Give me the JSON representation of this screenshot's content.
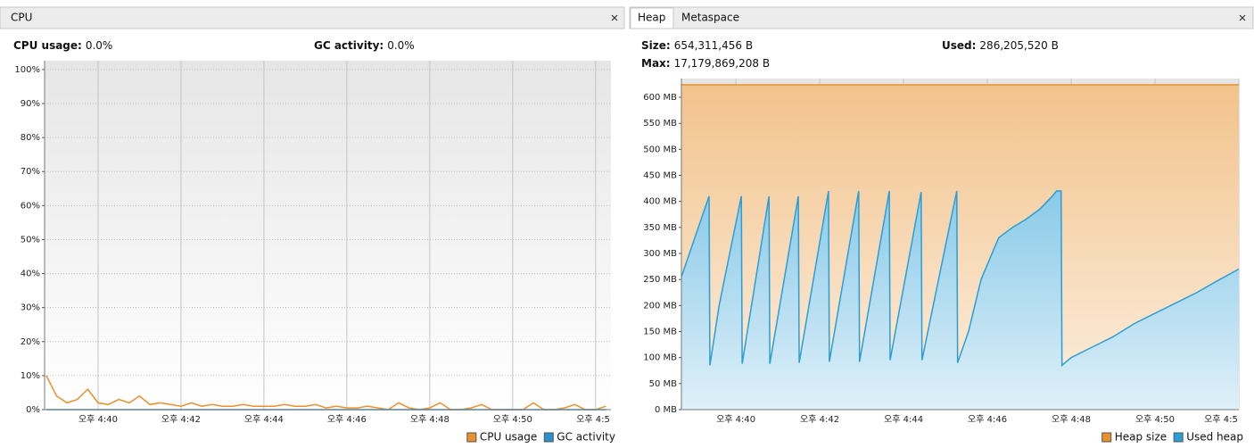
{
  "tabs": {
    "left": [
      "CPU"
    ],
    "right": [
      "Heap",
      "Metaspace"
    ]
  },
  "cpu_stats": [
    {
      "label": "CPU usage:",
      "value": "0.0%"
    },
    {
      "label": "GC activity:",
      "value": "0.0%"
    }
  ],
  "heap_stats": [
    {
      "label": "Size:",
      "value": "654,311,456 B"
    },
    {
      "label": "Used:",
      "value": "286,205,520 B"
    },
    {
      "label": "Max:",
      "value": "17,179,869,208 B"
    }
  ],
  "chart_data": [
    {
      "type": "line",
      "legend": "bottom-right",
      "grid": true,
      "x": [
        38.75,
        39,
        39.25,
        39.5,
        39.75,
        40,
        40.25,
        40.5,
        40.75,
        41,
        41.25,
        41.5,
        41.75,
        42,
        42.25,
        42.5,
        42.75,
        43,
        43.25,
        43.5,
        43.75,
        44,
        44.25,
        44.5,
        44.75,
        45,
        45.25,
        45.5,
        45.75,
        46,
        46.25,
        46.5,
        46.75,
        47,
        47.25,
        47.5,
        47.75,
        48,
        48.25,
        48.5,
        48.75,
        49,
        49.25,
        49.5,
        49.75,
        50,
        50.25,
        50.5,
        50.75,
        51,
        51.25,
        51.5,
        51.75,
        52,
        52.25
      ],
      "series": [
        {
          "name": "CPU usage",
          "color": "#e8912d",
          "values": [
            10,
            4,
            2,
            3,
            6,
            2,
            1.5,
            3,
            2,
            4,
            1.5,
            2,
            1.5,
            1,
            2,
            1,
            1.5,
            1,
            1,
            1.5,
            1,
            1,
            1,
            1.5,
            1,
            1,
            1.5,
            0.5,
            1,
            0.5,
            0.5,
            1,
            0.5,
            0,
            2,
            0.5,
            0,
            0.5,
            2,
            0,
            0,
            0.5,
            1.5,
            0,
            0,
            0,
            0,
            2,
            0,
            0,
            0.5,
            1.5,
            0,
            0,
            1
          ]
        },
        {
          "name": "GC activity",
          "color": "#2b8fcf",
          "values": [
            0,
            0,
            0,
            0,
            0,
            0,
            0,
            0,
            0,
            0,
            0,
            0,
            0,
            0,
            0,
            0,
            0,
            0,
            0,
            0,
            0,
            0,
            0,
            0,
            0,
            0,
            0,
            0,
            0,
            0,
            0,
            0,
            0,
            0,
            0,
            0,
            0,
            0,
            0,
            0,
            0,
            0,
            0,
            0,
            0,
            0,
            0,
            0,
            0,
            0,
            0,
            0,
            0,
            0,
            0
          ]
        }
      ],
      "xlim": [
        38.71,
        52.37
      ],
      "xticks": [
        {
          "value": 40,
          "label": "오후 4:40"
        },
        {
          "value": 42,
          "label": "오후 4:42"
        },
        {
          "value": 44,
          "label": "오후 4:44"
        },
        {
          "value": 46,
          "label": "오후 4:46"
        },
        {
          "value": 48,
          "label": "오후 4:48"
        },
        {
          "value": 50,
          "label": "오후 4:50"
        },
        {
          "value": 52,
          "label": "오후 4:5"
        }
      ],
      "ylim": [
        0,
        102.6
      ],
      "yticks": [
        {
          "value": 0,
          "label": "0%"
        },
        {
          "value": 10,
          "label": "10%"
        },
        {
          "value": 20,
          "label": "20%"
        },
        {
          "value": 30,
          "label": "30%"
        },
        {
          "value": 40,
          "label": "40%"
        },
        {
          "value": 50,
          "label": "50%"
        },
        {
          "value": 60,
          "label": "60%"
        },
        {
          "value": 70,
          "label": "70%"
        },
        {
          "value": 80,
          "label": "80%"
        },
        {
          "value": 90,
          "label": "90%"
        },
        {
          "value": 100,
          "label": "100%"
        }
      ]
    },
    {
      "type": "area",
      "legend": "bottom-right",
      "grid": true,
      "x": [
        38.7,
        39.36,
        39.38,
        39.6,
        40.13,
        40.15,
        40.79,
        40.81,
        41.49,
        41.51,
        42.21,
        42.23,
        42.93,
        42.95,
        43.66,
        43.68,
        44.42,
        44.44,
        45.27,
        45.29,
        45.55,
        45.85,
        46.27,
        46.6,
        46.91,
        47.25,
        47.55,
        47.65,
        47.76,
        47.78,
        48,
        48.5,
        49,
        49.5,
        50,
        50.5,
        51,
        51.5,
        52
      ],
      "series": [
        {
          "name": "Heap size",
          "color": "#e8912d",
          "values": [
            624,
            624,
            624,
            624,
            624,
            624,
            624,
            624,
            624,
            624,
            624,
            624,
            624,
            624,
            624,
            624,
            624,
            624,
            624,
            624,
            624,
            624,
            624,
            624,
            624,
            624,
            624,
            624,
            624,
            624,
            624,
            624,
            624,
            624,
            624,
            624,
            624,
            624,
            624
          ]
        },
        {
          "name": "Used heap",
          "color": "#2b9ed6",
          "values": [
            255,
            410,
            85,
            200,
            410,
            88,
            410,
            88,
            410,
            90,
            420,
            92,
            420,
            92,
            420,
            95,
            418,
            95,
            420,
            90,
            150,
            250,
            330,
            350,
            365,
            385,
            410,
            420,
            420,
            85,
            100,
            120,
            140,
            165,
            185,
            205,
            225,
            248,
            270
          ]
        }
      ],
      "xlim": [
        38.7,
        52.0
      ],
      "xticks": [
        {
          "value": 40,
          "label": "오후 4:40"
        },
        {
          "value": 42,
          "label": "오후 4:42"
        },
        {
          "value": 44,
          "label": "오후 4:44"
        },
        {
          "value": 46,
          "label": "오후 4:46"
        },
        {
          "value": 48,
          "label": "오후 4:48"
        },
        {
          "value": 50,
          "label": "오후 4:50"
        },
        {
          "value": 52,
          "label": "오후 4:5"
        }
      ],
      "ylim": [
        0,
        636
      ],
      "yticks": [
        {
          "value": 0,
          "label": "0 MB"
        },
        {
          "value": 50,
          "label": "50 MB"
        },
        {
          "value": 100,
          "label": "100 MB"
        },
        {
          "value": 150,
          "label": "150 MB"
        },
        {
          "value": 200,
          "label": "200 MB"
        },
        {
          "value": 250,
          "label": "250 MB"
        },
        {
          "value": 300,
          "label": "300 MB"
        },
        {
          "value": 350,
          "label": "350 MB"
        },
        {
          "value": 400,
          "label": "400 MB"
        },
        {
          "value": 450,
          "label": "450 MB"
        },
        {
          "value": 500,
          "label": "500 MB"
        },
        {
          "value": 550,
          "label": "550 MB"
        },
        {
          "value": 600,
          "label": "600 MB"
        }
      ]
    }
  ]
}
